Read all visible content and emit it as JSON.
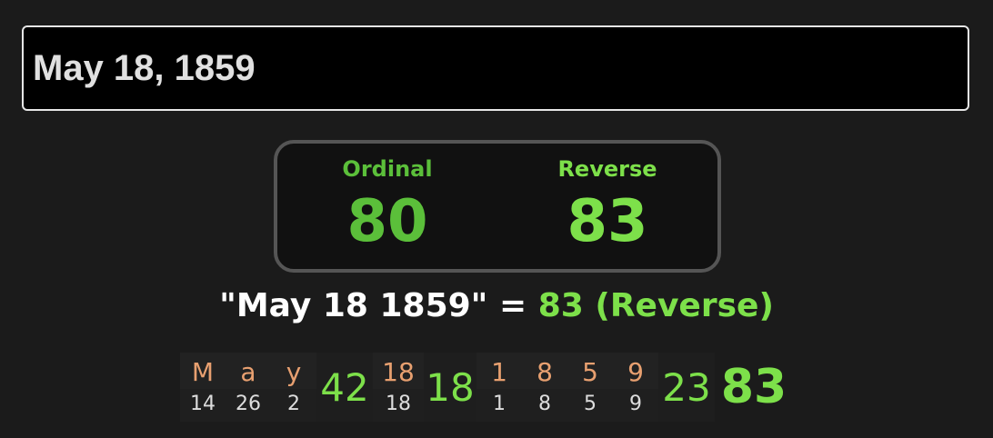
{
  "input": {
    "value": "May 18, 1859"
  },
  "results": [
    {
      "label": "Ordinal",
      "value": "80",
      "color": "#5bbf3a"
    },
    {
      "label": "Reverse",
      "value": "83",
      "color": "#7de04a"
    }
  ],
  "equation": {
    "phrase": "\"May 18 1859\"",
    "equals": "=",
    "value": "83",
    "cipher": "(Reverse)"
  },
  "breakdown": {
    "words": [
      {
        "chars": [
          {
            "c": "M",
            "v": "14"
          },
          {
            "c": "a",
            "v": "26"
          },
          {
            "c": "y",
            "v": "2"
          }
        ],
        "sum": "42"
      },
      {
        "chars": [
          {
            "c": "18",
            "v": "18"
          }
        ],
        "sum": "18"
      },
      {
        "chars": [
          {
            "c": "1",
            "v": "1"
          },
          {
            "c": "8",
            "v": "8"
          },
          {
            "c": "5",
            "v": "5"
          },
          {
            "c": "9",
            "v": "9"
          }
        ],
        "sum": "23"
      }
    ],
    "total": "83"
  }
}
